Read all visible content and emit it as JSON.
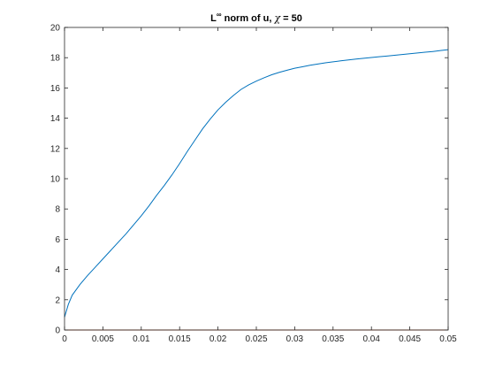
{
  "chart_data": {
    "type": "line",
    "title_prefix": "L",
    "title_superscript": "∞",
    "title_middle": " norm of u, ",
    "title_symbol": "χ",
    "title_suffix": " = 50",
    "xlabel": "",
    "ylabel": "",
    "xlim": [
      0,
      0.05
    ],
    "ylim": [
      0,
      20
    ],
    "x_ticks": [
      0,
      0.005,
      0.01,
      0.015,
      0.02,
      0.025,
      0.03,
      0.035,
      0.04,
      0.045,
      0.05
    ],
    "x_tick_labels": [
      "0",
      "0.005",
      "0.01",
      "0.015",
      "0.02",
      "0.025",
      "0.03",
      "0.035",
      "0.04",
      "0.045",
      "0.05"
    ],
    "y_ticks": [
      0,
      2,
      4,
      6,
      8,
      10,
      12,
      14,
      16,
      18,
      20
    ],
    "y_tick_labels": [
      "0",
      "2",
      "4",
      "6",
      "8",
      "10",
      "12",
      "14",
      "16",
      "18",
      "20"
    ],
    "grid": false,
    "series": [
      {
        "color": "#0072BD",
        "x": [
          0,
          0.0005,
          0.001,
          0.002,
          0.003,
          0.004,
          0.005,
          0.006,
          0.007,
          0.008,
          0.009,
          0.01,
          0.011,
          0.012,
          0.013,
          0.014,
          0.015,
          0.016,
          0.017,
          0.018,
          0.019,
          0.02,
          0.021,
          0.022,
          0.023,
          0.024,
          0.025,
          0.026,
          0.027,
          0.028,
          0.029,
          0.03,
          0.031,
          0.032,
          0.033,
          0.034,
          0.035,
          0.036,
          0.037,
          0.038,
          0.039,
          0.04,
          0.041,
          0.042,
          0.043,
          0.044,
          0.045,
          0.046,
          0.047,
          0.048,
          0.049,
          0.05
        ],
        "y": [
          0.85,
          1.7,
          2.3,
          3.0,
          3.6,
          4.15,
          4.7,
          5.25,
          5.8,
          6.35,
          6.95,
          7.55,
          8.2,
          8.9,
          9.55,
          10.25,
          11.0,
          11.8,
          12.55,
          13.3,
          13.95,
          14.55,
          15.05,
          15.5,
          15.9,
          16.2,
          16.45,
          16.67,
          16.87,
          17.03,
          17.17,
          17.3,
          17.4,
          17.5,
          17.58,
          17.66,
          17.73,
          17.79,
          17.85,
          17.91,
          17.96,
          18.01,
          18.06,
          18.11,
          18.16,
          18.21,
          18.26,
          18.31,
          18.36,
          18.41,
          18.47,
          18.53
        ]
      },
      {
        "color": "#D95319",
        "x": [
          0,
          0.05
        ],
        "y": [
          0,
          0
        ]
      }
    ]
  }
}
